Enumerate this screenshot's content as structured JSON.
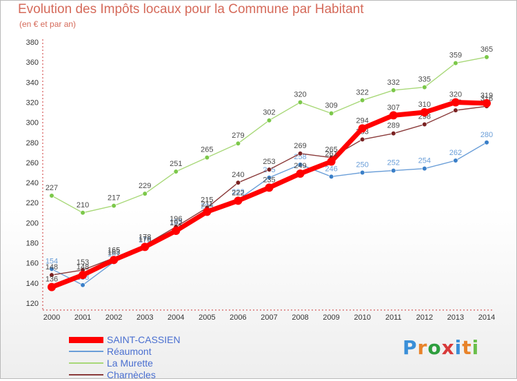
{
  "header": {
    "title": "Evolution des Impôts locaux pour la Commune par Habitant",
    "subtitle": "(en € et par an)"
  },
  "logo": {
    "text": "Proxiti",
    "letter_colors": [
      "#3a8fd8",
      "#e8832a",
      "#2e9e3e",
      "#d83a3a",
      "#3a8fd8",
      "#e8832a",
      "#6abf4b"
    ]
  },
  "chart_data": {
    "type": "line",
    "x": [
      "2000",
      "2001",
      "2002",
      "2003",
      "2004",
      "2005",
      "2006",
      "2007",
      "2008",
      "2009",
      "2010",
      "2011",
      "2012",
      "2013",
      "2014"
    ],
    "ylim": [
      120,
      380
    ],
    "yticks": [
      120,
      140,
      160,
      180,
      200,
      220,
      240,
      260,
      280,
      300,
      320,
      340,
      360,
      380
    ],
    "grid": false,
    "legend_position": "bottom-left",
    "series": [
      {
        "name": "Réaumont",
        "color": "#6a9ed8",
        "marker_color": "#3a7fc8",
        "label_color": "#6a9ed8",
        "values": [
          154,
          138,
          161,
          175,
          193,
          209,
          223,
          245,
          258,
          246,
          250,
          252,
          254,
          262,
          280
        ]
      },
      {
        "name": "La Murette",
        "color": "#a8d878",
        "marker_color": "#7cc84a",
        "label_color": "#4a4a4a",
        "values": [
          227,
          210,
          217,
          229,
          251,
          265,
          279,
          302,
          320,
          309,
          322,
          332,
          335,
          359,
          365
        ]
      },
      {
        "name": "Charnècles",
        "color": "#8a3a3a",
        "marker_color": "#7a2222",
        "label_color": "#4a4a4a",
        "values": [
          148,
          153,
          165,
          178,
          196,
          215,
          240,
          253,
          269,
          265,
          283,
          289,
          298,
          312,
          316
        ]
      },
      {
        "name": "SAINT-CASSIEN",
        "color": "#ff0000",
        "marker_color": "#ff0000",
        "label_color": "#4a4a4a",
        "values": [
          136,
          148,
          163,
          176,
          192,
          211,
          222,
          235,
          249,
          261,
          294,
          307,
          310,
          320,
          319
        ]
      }
    ],
    "legend_order": [
      "SAINT-CASSIEN",
      "Réaumont",
      "La Murette",
      "Charnècles"
    ]
  }
}
